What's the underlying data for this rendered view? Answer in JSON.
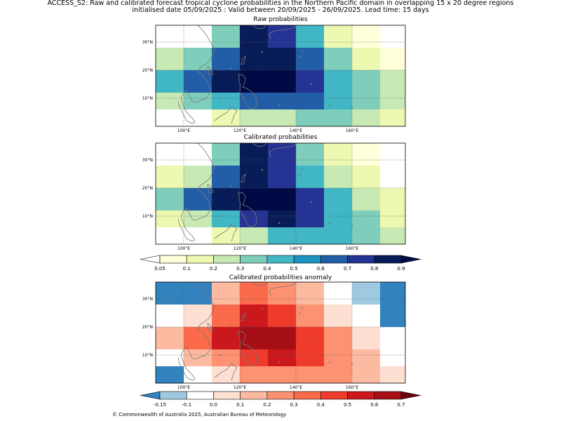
{
  "figure": {
    "title_line1": "ACCESS_S2: Raw and calibrated forecast tropical cyclone probabilities in the Northern Pacific domain in overlapping 15 x 20 degree regions",
    "title_line2": "initialised date 05/09/2025 :  Valid between 20/09/2025 - 26/09/2025. Lead time: 15 days",
    "footer": "© Commonwealth of Australia 2025, Australian Bureau of Meteorology"
  },
  "chart_data": [
    {
      "type": "heatmap",
      "title": "Raw probabilities",
      "x_ticks": [
        "100°E",
        "120°E",
        "140°E",
        "160°E"
      ],
      "y_ticks": [
        "30°N",
        "20°N",
        "10°N"
      ],
      "rows_north_to_south": [
        [
          null,
          null,
          0.35,
          0.8,
          0.7,
          0.45,
          0.15,
          0.05,
          null
        ],
        [
          0.25,
          0.35,
          0.6,
          0.8,
          0.8,
          0.6,
          0.35,
          0.15,
          0.05
        ],
        [
          0.45,
          0.6,
          0.8,
          0.95,
          0.95,
          0.7,
          0.45,
          0.35,
          0.25
        ],
        [
          0.25,
          0.35,
          0.45,
          0.6,
          0.6,
          0.6,
          0.45,
          0.35,
          0.25
        ],
        [
          null,
          null,
          0.15,
          0.25,
          0.25,
          0.35,
          0.35,
          0.25,
          0.15
        ]
      ]
    },
    {
      "type": "heatmap",
      "title": "Calibrated probabilities",
      "x_ticks": [
        "100°E",
        "120°E",
        "140°E",
        "160°E"
      ],
      "y_ticks": [
        "30°N",
        "20°N",
        "10°N"
      ],
      "rows_north_to_south": [
        [
          null,
          null,
          0.35,
          0.8,
          0.7,
          0.35,
          0.15,
          0.05,
          null
        ],
        [
          0.15,
          0.25,
          0.6,
          0.8,
          0.7,
          0.45,
          0.25,
          0.15,
          null
        ],
        [
          0.35,
          0.6,
          0.8,
          0.95,
          0.95,
          0.7,
          0.45,
          0.25,
          0.15
        ],
        [
          0.15,
          0.25,
          0.45,
          0.7,
          0.8,
          0.7,
          0.45,
          0.35,
          0.15
        ],
        [
          null,
          null,
          0.15,
          0.25,
          0.45,
          0.45,
          0.45,
          0.35,
          0.25
        ]
      ]
    },
    {
      "type": "heatmap",
      "title": "Calibrated probabilities anomaly",
      "x_ticks": [
        "100°E",
        "120°E",
        "140°E",
        "160°E"
      ],
      "y_ticks": [
        "30°N",
        "20°N",
        "10°N"
      ],
      "rows_north_to_south": [
        [
          -0.2,
          -0.2,
          0.15,
          0.35,
          0.25,
          0.15,
          null,
          -0.12,
          -0.2
        ],
        [
          null,
          0.07,
          0.35,
          0.55,
          0.45,
          0.25,
          0.07,
          null,
          -0.2
        ],
        [
          0.15,
          0.35,
          0.55,
          0.65,
          0.65,
          0.45,
          0.25,
          0.07,
          null
        ],
        [
          null,
          0.15,
          0.25,
          0.45,
          0.55,
          0.45,
          0.25,
          0.15,
          null
        ],
        [
          -0.2,
          null,
          0.07,
          0.25,
          0.25,
          0.25,
          0.25,
          0.15,
          0.07
        ]
      ]
    }
  ],
  "colorbars": {
    "probability": {
      "labels": [
        "0.05",
        "0.1",
        "0.2",
        "0.3",
        "0.4",
        "0.5",
        "0.6",
        "0.7",
        "0.8",
        "0.9"
      ],
      "colors": [
        "#ffffd9",
        "#edf8b1",
        "#c7e9b4",
        "#7fcdbb",
        "#41b6c4",
        "#1d91c0",
        "#225ea8",
        "#253494",
        "#081d58"
      ],
      "under_color": "#ffffff",
      "over_color": "#000a45"
    },
    "anomaly": {
      "labels": [
        "-0.15",
        "-0.1",
        "0.0",
        "0.1",
        "0.2",
        "0.3",
        "0.4",
        "0.5",
        "0.6",
        "0.7"
      ],
      "colors": [
        "#9ecae1",
        "#ffffff",
        "#fee0d2",
        "#fcbba1",
        "#fc9272",
        "#fb6a4a",
        "#ef3b2c",
        "#cb181d",
        "#a50f15"
      ],
      "under_color": "#3182bd",
      "over_color": "#67000d"
    }
  },
  "colors": {
    "coastline": "#7a7a7a",
    "grid": "#555555"
  }
}
